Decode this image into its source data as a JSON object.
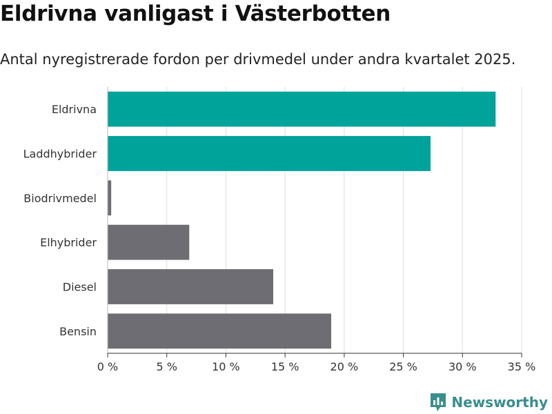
{
  "title": "Eldrivna vanligast i Västerbotten",
  "subtitle": "Antal nyregistrerade fordon per drivmedel under andra kvartalet 2025.",
  "brand": {
    "name": "Newsworthy",
    "icon": "newsworthy-logo-icon",
    "color": "#3a8e8e"
  },
  "colors": {
    "highlight": "#00a39a",
    "other": "#6e6d73",
    "grid": "#dddddd",
    "axis": "#333333"
  },
  "chart_data": {
    "type": "bar",
    "orientation": "horizontal",
    "categories": [
      "Eldrivna",
      "Laddhybrider",
      "Biodrivmedel",
      "Elhybrider",
      "Diesel",
      "Bensin"
    ],
    "values": [
      32.8,
      27.3,
      0.3,
      6.9,
      14.0,
      18.9
    ],
    "highlighted": [
      true,
      true,
      false,
      false,
      false,
      false
    ],
    "xlim": [
      0,
      35
    ],
    "xticks": [
      0,
      5,
      10,
      15,
      20,
      25,
      30,
      35
    ],
    "xtick_labels": [
      "0 %",
      "5 %",
      "10 %",
      "15 %",
      "20 %",
      "25 %",
      "30 %",
      "35 %"
    ],
    "grid": true
  }
}
